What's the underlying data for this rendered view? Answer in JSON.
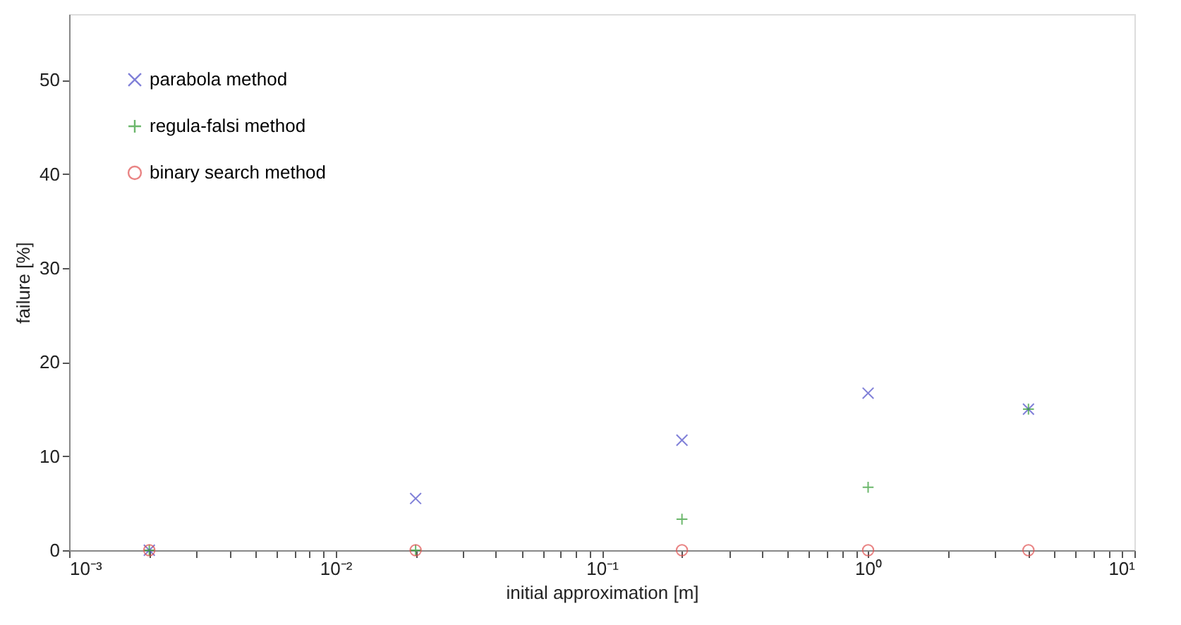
{
  "chart_data": {
    "type": "scatter",
    "xlabel": "initial approximation [m]",
    "ylabel": "failure [%]",
    "log": "x",
    "xlim": [
      0.001,
      10
    ],
    "ylim": [
      0,
      57
    ],
    "xticks": [
      {
        "value": 0.001,
        "label": "10⁻³"
      },
      {
        "value": 0.002,
        "label": null
      },
      {
        "value": 0.003,
        "label": null
      },
      {
        "value": 0.004,
        "label": null
      },
      {
        "value": 0.005,
        "label": null
      },
      {
        "value": 0.006,
        "label": null
      },
      {
        "value": 0.007,
        "label": null
      },
      {
        "value": 0.008,
        "label": null
      },
      {
        "value": 0.009,
        "label": null
      },
      {
        "value": 0.01,
        "label": "10⁻²"
      },
      {
        "value": 0.02,
        "label": null
      },
      {
        "value": 0.03,
        "label": null
      },
      {
        "value": 0.04,
        "label": null
      },
      {
        "value": 0.05,
        "label": null
      },
      {
        "value": 0.06,
        "label": null
      },
      {
        "value": 0.07,
        "label": null
      },
      {
        "value": 0.08,
        "label": null
      },
      {
        "value": 0.09,
        "label": null
      },
      {
        "value": 0.1,
        "label": "10⁻¹"
      },
      {
        "value": 0.2,
        "label": null
      },
      {
        "value": 0.3,
        "label": null
      },
      {
        "value": 0.4,
        "label": null
      },
      {
        "value": 0.5,
        "label": null
      },
      {
        "value": 0.6,
        "label": null
      },
      {
        "value": 0.7,
        "label": null
      },
      {
        "value": 0.8,
        "label": null
      },
      {
        "value": 0.9,
        "label": null
      },
      {
        "value": 1,
        "label": "10⁰"
      },
      {
        "value": 2,
        "label": null
      },
      {
        "value": 3,
        "label": null
      },
      {
        "value": 4,
        "label": null
      },
      {
        "value": 5,
        "label": null
      },
      {
        "value": 6,
        "label": null
      },
      {
        "value": 7,
        "label": null
      },
      {
        "value": 8,
        "label": null
      },
      {
        "value": 9,
        "label": null
      },
      {
        "value": 10,
        "label": "10¹"
      }
    ],
    "yticks": [
      0,
      10,
      20,
      30,
      40,
      50
    ],
    "grid": false,
    "legend": "top left",
    "x": [
      0.002,
      0.02,
      0.2,
      1,
      4
    ],
    "series": [
      {
        "name": "parabola method",
        "color": "#4b4bc8",
        "marker": "cross",
        "values": [
          0,
          5.5,
          11.7,
          16.7,
          15
        ]
      },
      {
        "name": "regula-falsi method",
        "color": "#2e9a2e",
        "marker": "plus",
        "values": [
          0,
          0,
          3.3,
          6.7,
          15
        ]
      },
      {
        "name": "binary search method",
        "color": "#e05050",
        "marker": "circle",
        "values": [
          0,
          0,
          0,
          0,
          0
        ]
      }
    ]
  }
}
